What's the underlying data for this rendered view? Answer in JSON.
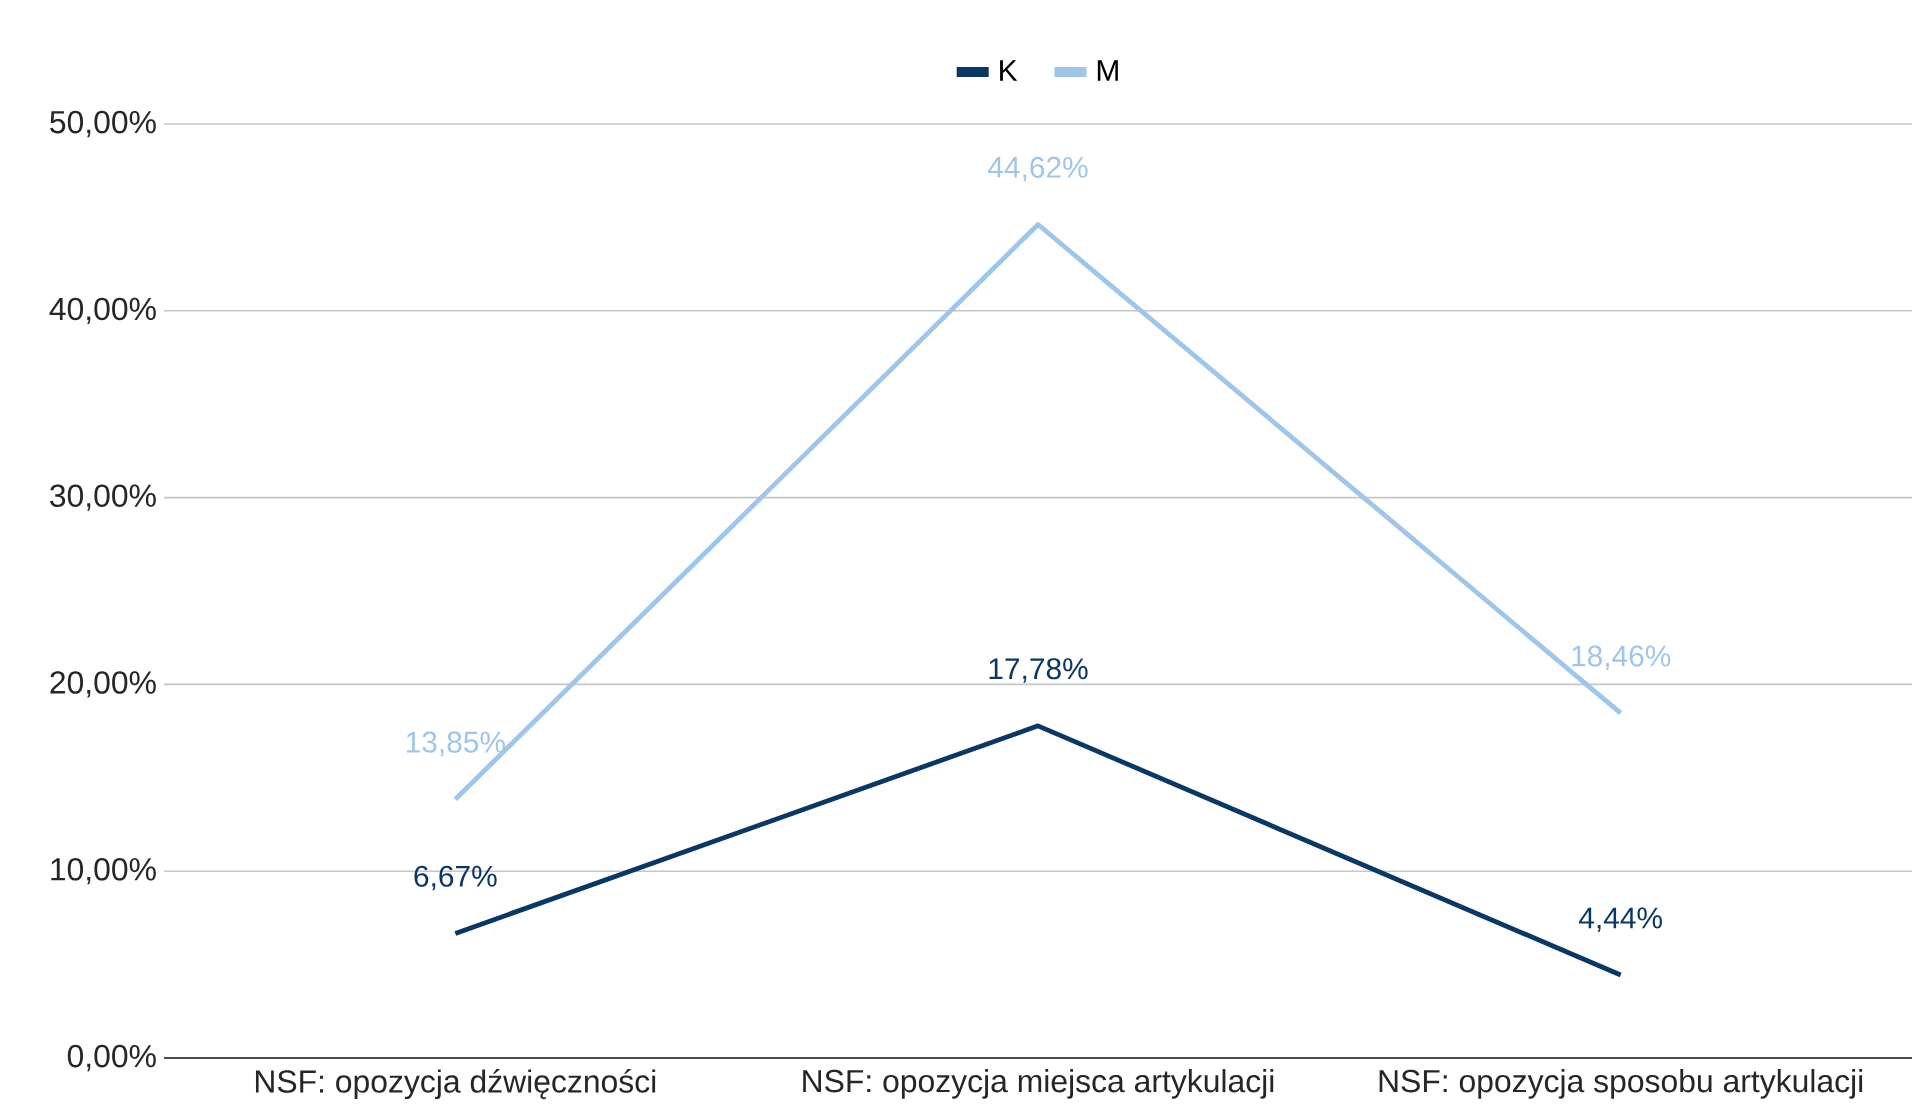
{
  "chart_data": {
    "type": "line",
    "categories": [
      "NSF: opozycja dźwięczności",
      "NSF: opozycja miejsca artykulacji",
      "NSF: opozycja sposobu artykulacji"
    ],
    "series": [
      {
        "name": "K",
        "color": "#0b3763",
        "values": [
          6.67,
          17.78,
          4.44
        ],
        "value_labels": [
          "6,67%",
          "17,78%",
          "4,44%"
        ]
      },
      {
        "name": "M",
        "color": "#9fc5e8",
        "values": [
          13.85,
          44.62,
          18.46
        ],
        "value_labels": [
          "13,85%",
          "44,62%",
          "18,46%"
        ]
      }
    ],
    "ylim": [
      0,
      50
    ],
    "yticks": [
      {
        "value": 0,
        "label": "0,00%"
      },
      {
        "value": 10,
        "label": "10,00%"
      },
      {
        "value": 20,
        "label": "20,00%"
      },
      {
        "value": 30,
        "label": "30,00%"
      },
      {
        "value": 40,
        "label": "40,00%"
      },
      {
        "value": 50,
        "label": "50,00%"
      }
    ],
    "grid": "y",
    "legend": "top",
    "marker": "none",
    "line_style": "solid"
  }
}
